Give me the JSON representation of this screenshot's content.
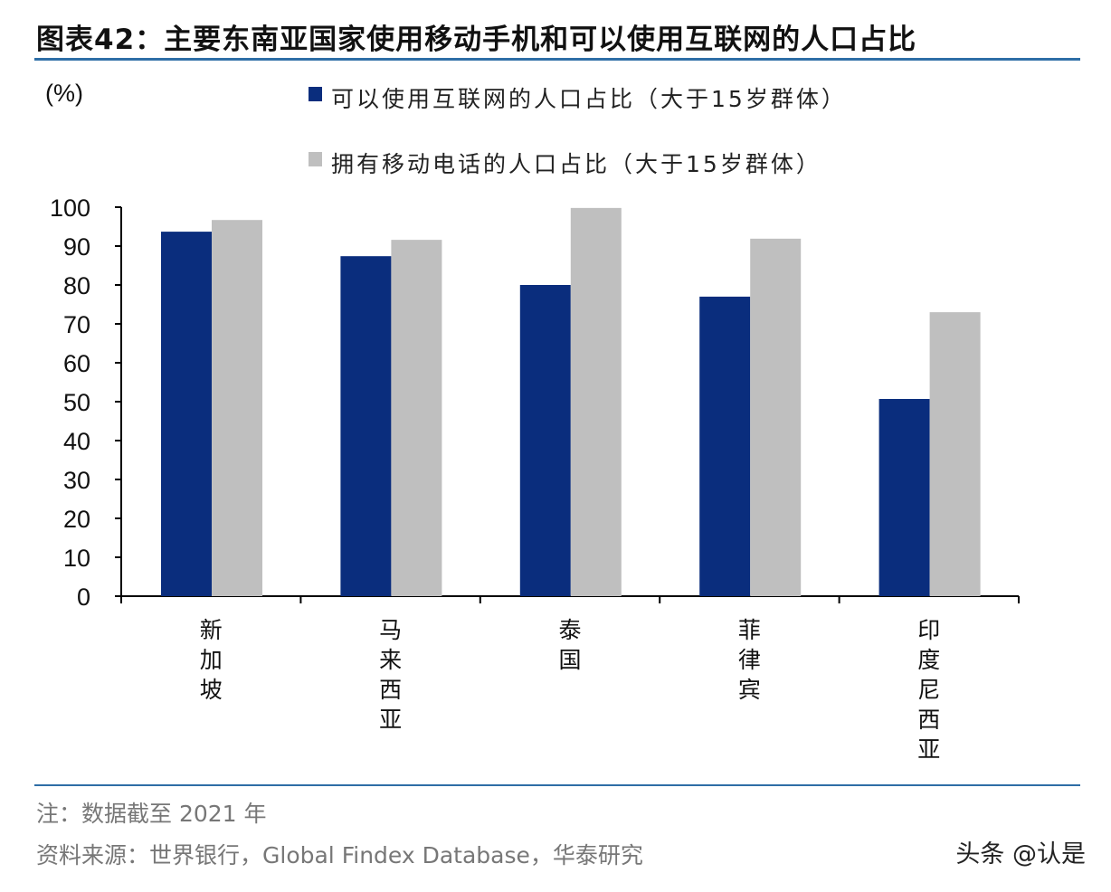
{
  "title": "图表42：主要东南亚国家使用移动手机和可以使用互联网的人口占比",
  "notes": {
    "note": "注：数据截至 2021 年",
    "source": "资料来源：世界银行，Global Findex Database，华泰研究"
  },
  "watermark": "头条 @认是",
  "chart_data": {
    "type": "bar",
    "ylabel": "(%)",
    "ylim": [
      0,
      100
    ],
    "yticks": [
      0,
      10,
      20,
      30,
      40,
      50,
      60,
      70,
      80,
      90,
      100
    ],
    "grid": false,
    "legend_position": "top",
    "categories": [
      "新加坡",
      "马来西亚",
      "泰国",
      "菲律宾",
      "印度尼西亚"
    ],
    "series": [
      {
        "name": "可以使用互联网的人口占比（大于15岁群体）",
        "color": "#0a2d7d",
        "values": [
          93.7,
          87.4,
          80.0,
          77.0,
          50.7
        ]
      },
      {
        "name": "拥有移动电话的人口占比（大于15岁群体）",
        "color": "#bfbfbf",
        "values": [
          96.7,
          91.6,
          99.8,
          91.9,
          73.0
        ]
      }
    ]
  }
}
